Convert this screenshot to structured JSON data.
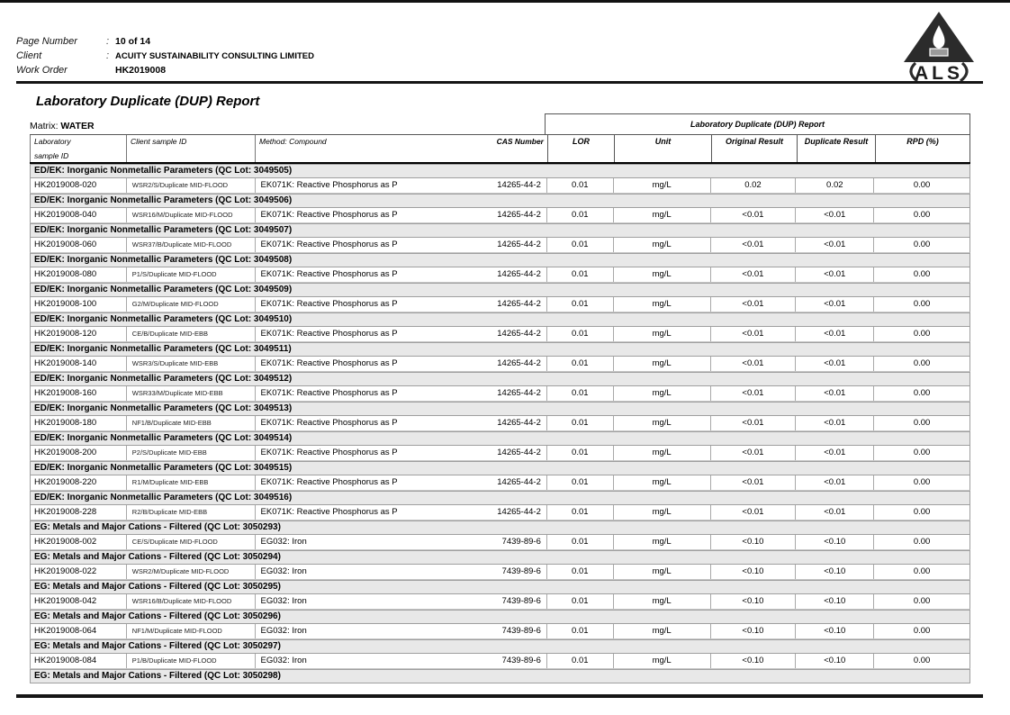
{
  "page": {
    "meta": [
      {
        "label": "Page Number",
        "colon": ":",
        "value": "10 of 14"
      },
      {
        "label": "Client",
        "colon": ":",
        "value": "ACUITY SUSTAINABILITY CONSULTING LIMITED"
      },
      {
        "label": "Work Order",
        "colon": "",
        "value": "HK2019008"
      }
    ],
    "logo_text": "ALS",
    "title": "Laboratory Duplicate (DUP) Report",
    "matrix_label": "Matrix:",
    "matrix_value": "WATER"
  },
  "table": {
    "group_header": "Laboratory Duplicate (DUP) Report",
    "columns": {
      "laboratory_line1": "Laboratory",
      "laboratory_line2": "sample ID",
      "client": "Client sample ID",
      "method": "Method: Compound",
      "cas": "CAS Number",
      "lor": "LOR",
      "unit": "Unit",
      "original": "Original Result",
      "duplicate": "Duplicate Result",
      "rpd": "RPD (%)"
    },
    "sections": [
      {
        "header": "ED/EK: Inorganic Nonmetallic Parameters  (QC Lot: 3049505)",
        "row": {
          "lab_id": "HK2019008-020",
          "client_id": "WSR2/S/Duplicate MID-FLOOD",
          "method": "EK071K: Reactive Phosphorus as P",
          "cas": "14265-44-2",
          "lor": "0.01",
          "unit": "mg/L",
          "original": "0.02",
          "duplicate": "0.02",
          "rpd": "0.00"
        }
      },
      {
        "header": "ED/EK: Inorganic Nonmetallic Parameters  (QC Lot: 3049506)",
        "row": {
          "lab_id": "HK2019008-040",
          "client_id": "WSR16/M/Duplicate MID-FLOOD",
          "method": "EK071K: Reactive Phosphorus as P",
          "cas": "14265-44-2",
          "lor": "0.01",
          "unit": "mg/L",
          "original": "<0.01",
          "duplicate": "<0.01",
          "rpd": "0.00"
        }
      },
      {
        "header": "ED/EK: Inorganic Nonmetallic Parameters  (QC Lot: 3049507)",
        "row": {
          "lab_id": "HK2019008-060",
          "client_id": "WSR37/B/Duplicate MID-FLOOD",
          "method": "EK071K: Reactive Phosphorus as P",
          "cas": "14265-44-2",
          "lor": "0.01",
          "unit": "mg/L",
          "original": "<0.01",
          "duplicate": "<0.01",
          "rpd": "0.00"
        }
      },
      {
        "header": "ED/EK: Inorganic Nonmetallic Parameters  (QC Lot: 3049508)",
        "row": {
          "lab_id": "HK2019008-080",
          "client_id": "P1/S/Duplicate MID-FLOOD",
          "method": "EK071K: Reactive Phosphorus as P",
          "cas": "14265-44-2",
          "lor": "0.01",
          "unit": "mg/L",
          "original": "<0.01",
          "duplicate": "<0.01",
          "rpd": "0.00"
        }
      },
      {
        "header": "ED/EK: Inorganic Nonmetallic Parameters  (QC Lot: 3049509)",
        "row": {
          "lab_id": "HK2019008-100",
          "client_id": "G2/M/Duplicate MID-FLOOD",
          "method": "EK071K: Reactive Phosphorus as P",
          "cas": "14265-44-2",
          "lor": "0.01",
          "unit": "mg/L",
          "original": "<0.01",
          "duplicate": "<0.01",
          "rpd": "0.00"
        }
      },
      {
        "header": "ED/EK: Inorganic Nonmetallic Parameters  (QC Lot: 3049510)",
        "row": {
          "lab_id": "HK2019008-120",
          "client_id": "CE/B/Duplicate MID-EBB",
          "method": "EK071K: Reactive Phosphorus as P",
          "cas": "14265-44-2",
          "lor": "0.01",
          "unit": "mg/L",
          "original": "<0.01",
          "duplicate": "<0.01",
          "rpd": "0.00"
        }
      },
      {
        "header": "ED/EK: Inorganic Nonmetallic Parameters  (QC Lot: 3049511)",
        "row": {
          "lab_id": "HK2019008-140",
          "client_id": "WSR3/S/Duplicate MID-EBB",
          "method": "EK071K: Reactive Phosphorus as P",
          "cas": "14265-44-2",
          "lor": "0.01",
          "unit": "mg/L",
          "original": "<0.01",
          "duplicate": "<0.01",
          "rpd": "0.00"
        }
      },
      {
        "header": "ED/EK: Inorganic Nonmetallic Parameters  (QC Lot: 3049512)",
        "row": {
          "lab_id": "HK2019008-160",
          "client_id": "WSR33/M/Duplicate MID-EBB",
          "method": "EK071K: Reactive Phosphorus as P",
          "cas": "14265-44-2",
          "lor": "0.01",
          "unit": "mg/L",
          "original": "<0.01",
          "duplicate": "<0.01",
          "rpd": "0.00"
        }
      },
      {
        "header": "ED/EK: Inorganic Nonmetallic Parameters  (QC Lot: 3049513)",
        "row": {
          "lab_id": "HK2019008-180",
          "client_id": "NF1/B/Duplicate MID-EBB",
          "method": "EK071K: Reactive Phosphorus as P",
          "cas": "14265-44-2",
          "lor": "0.01",
          "unit": "mg/L",
          "original": "<0.01",
          "duplicate": "<0.01",
          "rpd": "0.00"
        }
      },
      {
        "header": "ED/EK: Inorganic Nonmetallic Parameters  (QC Lot: 3049514)",
        "row": {
          "lab_id": "HK2019008-200",
          "client_id": "P2/S/Duplicate MID-EBB",
          "method": "EK071K: Reactive Phosphorus as P",
          "cas": "14265-44-2",
          "lor": "0.01",
          "unit": "mg/L",
          "original": "<0.01",
          "duplicate": "<0.01",
          "rpd": "0.00"
        }
      },
      {
        "header": "ED/EK: Inorganic Nonmetallic Parameters  (QC Lot: 3049515)",
        "row": {
          "lab_id": "HK2019008-220",
          "client_id": "R1/M/Duplicate MID-EBB",
          "method": "EK071K: Reactive Phosphorus as P",
          "cas": "14265-44-2",
          "lor": "0.01",
          "unit": "mg/L",
          "original": "<0.01",
          "duplicate": "<0.01",
          "rpd": "0.00"
        }
      },
      {
        "header": "ED/EK: Inorganic Nonmetallic Parameters  (QC Lot: 3049516)",
        "row": {
          "lab_id": "HK2019008-228",
          "client_id": "R2/B/Duplicate MID-EBB",
          "method": "EK071K: Reactive Phosphorus as P",
          "cas": "14265-44-2",
          "lor": "0.01",
          "unit": "mg/L",
          "original": "<0.01",
          "duplicate": "<0.01",
          "rpd": "0.00"
        }
      },
      {
        "header": "EG: Metals and Major Cations - Filtered  (QC Lot: 3050293)",
        "row": {
          "lab_id": "HK2019008-002",
          "client_id": "CE/S/Duplicate MID-FLOOD",
          "method": "EG032: Iron",
          "cas": "7439-89-6",
          "lor": "0.01",
          "unit": "mg/L",
          "original": "<0.10",
          "duplicate": "<0.10",
          "rpd": "0.00"
        }
      },
      {
        "header": "EG: Metals and Major Cations - Filtered  (QC Lot: 3050294)",
        "row": {
          "lab_id": "HK2019008-022",
          "client_id": "WSR2/M/Duplicate MID-FLOOD",
          "method": "EG032: Iron",
          "cas": "7439-89-6",
          "lor": "0.01",
          "unit": "mg/L",
          "original": "<0.10",
          "duplicate": "<0.10",
          "rpd": "0.00"
        }
      },
      {
        "header": "EG: Metals and Major Cations - Filtered  (QC Lot: 3050295)",
        "row": {
          "lab_id": "HK2019008-042",
          "client_id": "WSR16/B/Duplicate MID-FLOOD",
          "method": "EG032: Iron",
          "cas": "7439-89-6",
          "lor": "0.01",
          "unit": "mg/L",
          "original": "<0.10",
          "duplicate": "<0.10",
          "rpd": "0.00"
        }
      },
      {
        "header": "EG: Metals and Major Cations - Filtered  (QC Lot: 3050296)",
        "row": {
          "lab_id": "HK2019008-064",
          "client_id": "NF1/M/Duplicate MID-FLOOD",
          "method": "EG032: Iron",
          "cas": "7439-89-6",
          "lor": "0.01",
          "unit": "mg/L",
          "original": "<0.10",
          "duplicate": "<0.10",
          "rpd": "0.00"
        }
      },
      {
        "header": "EG: Metals and Major Cations - Filtered  (QC Lot: 3050297)",
        "row": {
          "lab_id": "HK2019008-084",
          "client_id": "P1/B/Duplicate MID-FLOOD",
          "method": "EG032: Iron",
          "cas": "7439-89-6",
          "lor": "0.01",
          "unit": "mg/L",
          "original": "<0.10",
          "duplicate": "<0.10",
          "rpd": "0.00"
        }
      },
      {
        "header": "EG: Metals and Major Cations - Filtered  (QC Lot: 3050298)",
        "row": null
      }
    ]
  },
  "colors": {
    "section_band": "#e8e8e8",
    "table_border": "#9f9f9f",
    "rule": "#151515",
    "logo": "#2b2b2b"
  }
}
